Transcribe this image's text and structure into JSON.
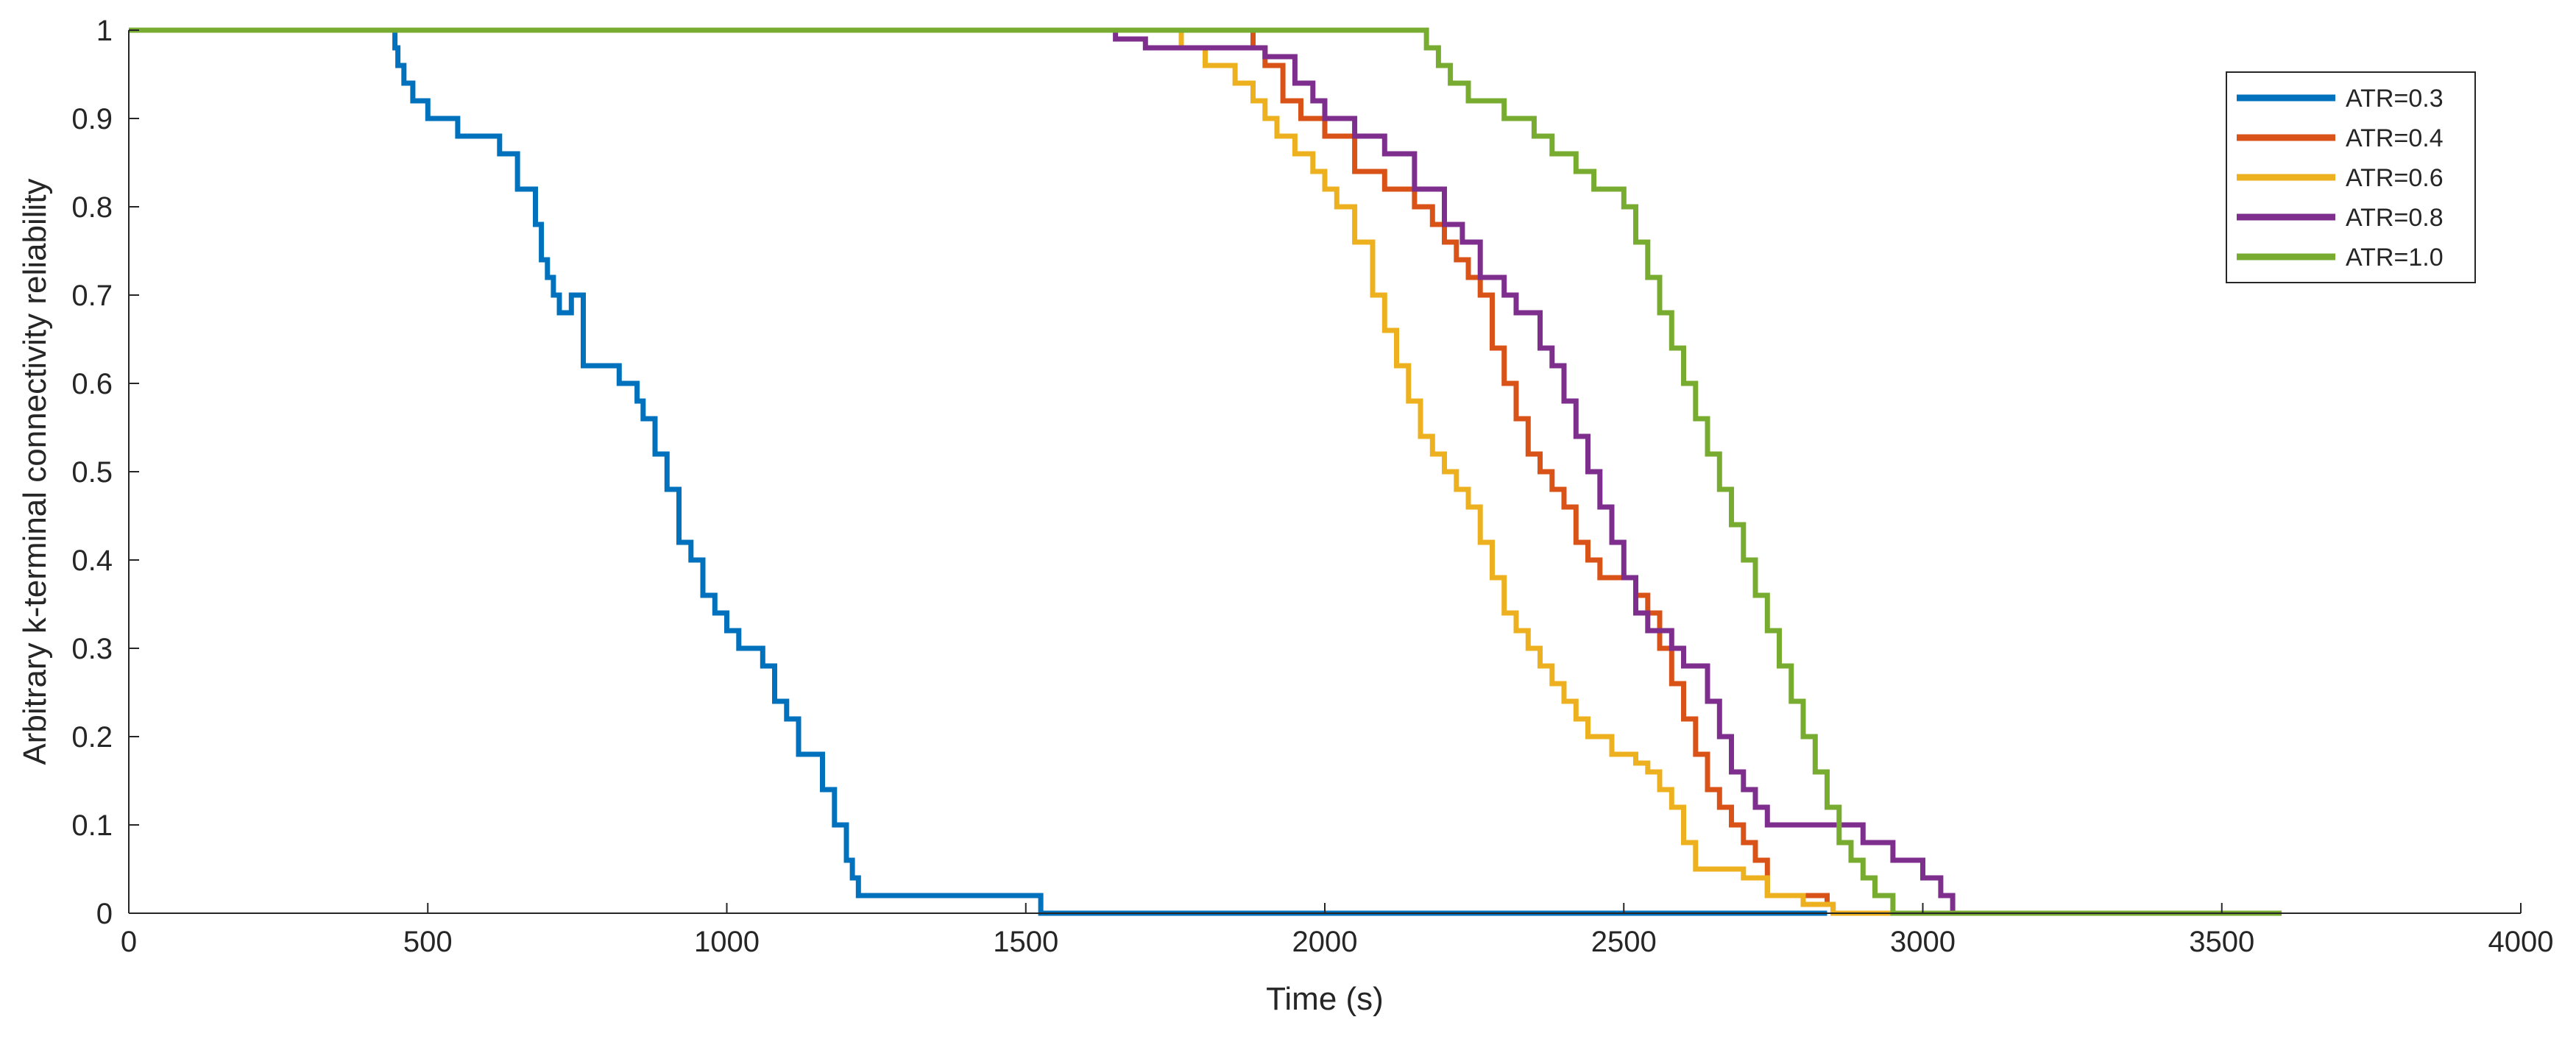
{
  "chart_data": {
    "type": "line",
    "title": "",
    "xlabel": "Time (s)",
    "ylabel": "Arbitrary k-terminal connectivity reliability",
    "xlim": [
      0,
      4000
    ],
    "ylim": [
      0,
      1
    ],
    "grid": false,
    "legend_position": "top-right",
    "x_ticks": [
      0,
      500,
      1000,
      1500,
      2000,
      2500,
      3000,
      3500,
      4000
    ],
    "x_tick_labels": [
      "0",
      "500",
      "1000",
      "1500",
      "2000",
      "2500",
      "3000",
      "3500",
      "4000"
    ],
    "y_ticks": [
      0,
      0.1,
      0.2,
      0.3,
      0.4,
      0.5,
      0.6,
      0.7,
      0.8,
      0.9,
      1
    ],
    "y_tick_labels": [
      "0",
      "0.1",
      "0.2",
      "0.3",
      "0.4",
      "0.5",
      "0.6",
      "0.7",
      "0.8",
      "0.9",
      "1"
    ],
    "series": [
      {
        "name": "ATR=0.3",
        "color": "#0072BD",
        "x": [
          0,
          440,
          445,
          450,
          460,
          475,
          500,
          550,
          620,
          650,
          680,
          690,
          700,
          710,
          720,
          740,
          760,
          780,
          820,
          850,
          860,
          880,
          900,
          920,
          940,
          960,
          980,
          1000,
          1020,
          1040,
          1060,
          1080,
          1100,
          1120,
          1140,
          1160,
          1180,
          1200,
          1210,
          1220,
          1240,
          1260,
          1270,
          1300,
          1400,
          1520,
          1525,
          1600,
          2000,
          2500,
          2840
        ],
        "y": [
          1,
          1,
          0.98,
          0.96,
          0.94,
          0.92,
          0.9,
          0.88,
          0.86,
          0.82,
          0.78,
          0.74,
          0.72,
          0.7,
          0.68,
          0.7,
          0.62,
          0.62,
          0.6,
          0.58,
          0.56,
          0.52,
          0.48,
          0.42,
          0.4,
          0.36,
          0.34,
          0.32,
          0.3,
          0.3,
          0.28,
          0.24,
          0.22,
          0.18,
          0.18,
          0.14,
          0.1,
          0.06,
          0.04,
          0.02,
          0.02,
          0.02,
          0.02,
          0.02,
          0.02,
          0.02,
          0,
          0,
          0,
          0,
          0
        ]
      },
      {
        "name": "ATR=0.4",
        "color": "#D95319",
        "x": [
          1620,
          1700,
          1750,
          1800,
          1850,
          1880,
          1900,
          1930,
          1960,
          2000,
          2050,
          2100,
          2150,
          2180,
          2200,
          2220,
          2240,
          2260,
          2280,
          2300,
          2320,
          2340,
          2360,
          2380,
          2400,
          2420,
          2440,
          2460,
          2480,
          2500,
          2520,
          2540,
          2560,
          2580,
          2600,
          2620,
          2640,
          2660,
          2680,
          2700,
          2720,
          2740,
          2760,
          2800,
          2840,
          2850
        ],
        "y": [
          1,
          1,
          1,
          1,
          1,
          0.98,
          0.96,
          0.92,
          0.9,
          0.88,
          0.84,
          0.82,
          0.8,
          0.78,
          0.76,
          0.74,
          0.72,
          0.7,
          0.64,
          0.6,
          0.56,
          0.52,
          0.5,
          0.48,
          0.46,
          0.42,
          0.4,
          0.38,
          0.38,
          0.38,
          0.36,
          0.34,
          0.3,
          0.26,
          0.22,
          0.18,
          0.14,
          0.12,
          0.1,
          0.08,
          0.06,
          0.02,
          0.02,
          0.02,
          0.01,
          0
        ]
      },
      {
        "name": "ATR=0.6",
        "color": "#EDB120",
        "x": [
          1620,
          1720,
          1760,
          1800,
          1850,
          1880,
          1900,
          1920,
          1950,
          1980,
          2000,
          2020,
          2050,
          2080,
          2100,
          2120,
          2140,
          2160,
          2180,
          2200,
          2220,
          2240,
          2260,
          2280,
          2300,
          2320,
          2340,
          2360,
          2380,
          2400,
          2420,
          2440,
          2460,
          2480,
          2500,
          2520,
          2540,
          2560,
          2580,
          2600,
          2620,
          2640,
          2660,
          2700,
          2740,
          2800,
          2850,
          2900,
          2950
        ],
        "y": [
          1,
          1,
          0.98,
          0.96,
          0.94,
          0.92,
          0.9,
          0.88,
          0.86,
          0.84,
          0.82,
          0.8,
          0.76,
          0.7,
          0.66,
          0.62,
          0.58,
          0.54,
          0.52,
          0.5,
          0.48,
          0.46,
          0.42,
          0.38,
          0.34,
          0.32,
          0.3,
          0.28,
          0.26,
          0.24,
          0.22,
          0.2,
          0.2,
          0.18,
          0.18,
          0.17,
          0.16,
          0.14,
          0.12,
          0.08,
          0.05,
          0.05,
          0.05,
          0.04,
          0.02,
          0.01,
          0,
          0,
          0
        ]
      },
      {
        "name": "ATR=0.8",
        "color": "#7E2F8E",
        "x": [
          1620,
          1650,
          1700,
          1800,
          1900,
          1950,
          1980,
          2000,
          2050,
          2100,
          2150,
          2200,
          2230,
          2260,
          2300,
          2320,
          2360,
          2380,
          2400,
          2420,
          2440,
          2460,
          2480,
          2500,
          2520,
          2540,
          2560,
          2580,
          2600,
          2640,
          2660,
          2680,
          2700,
          2720,
          2740,
          2760,
          2800,
          2850,
          2900,
          2950,
          3000,
          3030,
          3050
        ],
        "y": [
          1,
          0.99,
          0.98,
          0.98,
          0.97,
          0.94,
          0.92,
          0.9,
          0.88,
          0.86,
          0.82,
          0.78,
          0.76,
          0.72,
          0.7,
          0.68,
          0.64,
          0.62,
          0.58,
          0.54,
          0.5,
          0.46,
          0.42,
          0.38,
          0.34,
          0.32,
          0.32,
          0.3,
          0.28,
          0.24,
          0.2,
          0.16,
          0.14,
          0.12,
          0.1,
          0.1,
          0.1,
          0.1,
          0.08,
          0.06,
          0.04,
          0.02,
          0
        ]
      },
      {
        "name": "ATR=1.0",
        "color": "#77AC30",
        "x": [
          0,
          500,
          1000,
          1500,
          2000,
          2150,
          2170,
          2190,
          2210,
          2240,
          2300,
          2350,
          2380,
          2420,
          2450,
          2500,
          2520,
          2540,
          2560,
          2580,
          2600,
          2620,
          2640,
          2660,
          2680,
          2700,
          2720,
          2740,
          2760,
          2780,
          2800,
          2820,
          2840,
          2860,
          2880,
          2900,
          2920,
          2950,
          3000,
          3200,
          3400,
          3600
        ],
        "y": [
          1,
          1,
          1,
          1,
          1,
          1,
          0.98,
          0.96,
          0.94,
          0.92,
          0.9,
          0.88,
          0.86,
          0.84,
          0.82,
          0.8,
          0.76,
          0.72,
          0.68,
          0.64,
          0.6,
          0.56,
          0.52,
          0.48,
          0.44,
          0.4,
          0.36,
          0.32,
          0.28,
          0.24,
          0.2,
          0.16,
          0.12,
          0.08,
          0.06,
          0.04,
          0.02,
          0,
          0,
          0,
          0,
          0
        ]
      }
    ]
  }
}
